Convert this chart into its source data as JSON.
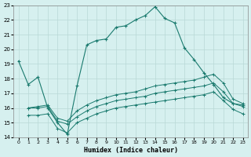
{
  "xlabel": "Humidex (Indice chaleur)",
  "main_line_x": [
    0,
    1,
    2,
    3,
    4,
    5,
    6,
    7,
    8,
    9,
    10,
    11,
    12,
    13,
    14,
    15,
    16,
    17,
    18,
    19,
    20,
    21,
    22,
    23
  ],
  "main_line_y": [
    19.2,
    17.6,
    18.1,
    16.0,
    15.0,
    14.2,
    17.5,
    20.3,
    20.6,
    20.7,
    21.5,
    21.6,
    22.0,
    22.3,
    22.9,
    22.1,
    21.8,
    20.1,
    19.3,
    18.4,
    17.6,
    16.7,
    16.3,
    16.2
  ],
  "flat_line1_x": [
    1,
    2,
    3,
    4,
    5,
    6,
    7,
    8,
    9,
    10,
    11,
    12,
    13,
    14,
    15,
    16,
    17,
    18,
    19,
    20,
    21,
    22,
    23
  ],
  "flat_line1_y": [
    16.0,
    16.1,
    16.2,
    15.3,
    15.1,
    15.8,
    16.2,
    16.5,
    16.7,
    16.9,
    17.0,
    17.1,
    17.3,
    17.5,
    17.6,
    17.7,
    17.8,
    17.9,
    18.1,
    18.3,
    17.7,
    16.6,
    16.3
  ],
  "flat_line2_x": [
    1,
    2,
    3,
    4,
    5,
    6,
    7,
    8,
    9,
    10,
    11,
    12,
    13,
    14,
    15,
    16,
    17,
    18,
    19,
    20,
    21,
    22,
    23
  ],
  "flat_line2_y": [
    16.0,
    16.0,
    16.1,
    15.1,
    14.9,
    15.4,
    15.8,
    16.1,
    16.3,
    16.5,
    16.6,
    16.7,
    16.8,
    17.0,
    17.1,
    17.2,
    17.3,
    17.4,
    17.5,
    17.7,
    17.1,
    16.3,
    16.1
  ],
  "flat_line3_x": [
    1,
    2,
    3,
    4,
    5,
    6,
    7,
    8,
    9,
    10,
    11,
    12,
    13,
    14,
    15,
    16,
    17,
    18,
    19,
    20,
    21,
    22,
    23
  ],
  "flat_line3_y": [
    15.5,
    15.5,
    15.6,
    14.6,
    14.3,
    15.0,
    15.3,
    15.6,
    15.8,
    16.0,
    16.1,
    16.2,
    16.3,
    16.4,
    16.5,
    16.6,
    16.7,
    16.8,
    16.9,
    17.1,
    16.5,
    15.9,
    15.6
  ],
  "line_color": "#1a7a6e",
  "bg_color": "#d6f0ef",
  "grid_color": "#b8d8d6",
  "ylim": [
    14,
    23
  ],
  "xlim": [
    -0.5,
    23.5
  ],
  "yticks": [
    14,
    15,
    16,
    17,
    18,
    19,
    20,
    21,
    22,
    23
  ],
  "xticks": [
    0,
    1,
    2,
    3,
    4,
    5,
    6,
    7,
    8,
    9,
    10,
    11,
    12,
    13,
    14,
    15,
    16,
    17,
    18,
    19,
    20,
    21,
    22,
    23
  ]
}
